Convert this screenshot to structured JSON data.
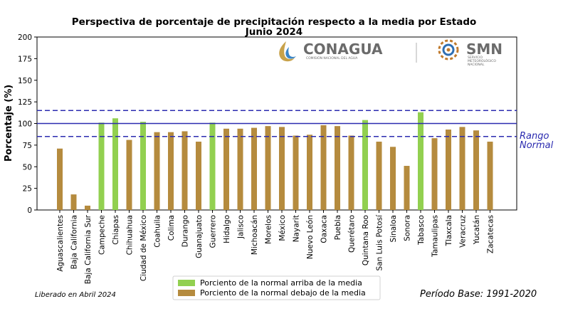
{
  "chart_data": {
    "type": "bar",
    "title": "Perspectiva de porcentaje de precipitación respecto a la media por Estado",
    "subtitle": "Junio 2024",
    "ylabel": "Porcentaje (%)",
    "xlabel": "",
    "ylim": [
      0,
      200
    ],
    "yticks": [
      0,
      25,
      50,
      75,
      100,
      125,
      150,
      175,
      200
    ],
    "grid": false,
    "categories": [
      "Aguascalientes",
      "Baja California",
      "Baja California Sur",
      "Campeche",
      "Chiapas",
      "Chihuahua",
      "Ciudad de México",
      "Coahuila",
      "Colima",
      "Durango",
      "Guanajuato",
      "Guerrero",
      "Hidalgo",
      "Jalisco",
      "Michoacán",
      "Morelos",
      "México",
      "Nayarit",
      "Nuevo León",
      "Oaxaca",
      "Puebla",
      "Querétaro",
      "Quintana Roo",
      "San Luis Potosí",
      "Sinaloa",
      "Sonora",
      "Tabasco",
      "Tamaulipas",
      "Tlaxcala",
      "Veracruz",
      "Yucatán",
      "Zacatecas"
    ],
    "values": [
      71,
      18,
      5,
      101,
      106,
      81,
      102,
      90,
      90,
      91,
      79,
      101,
      94,
      94,
      95,
      97,
      96,
      86,
      87,
      98,
      97,
      86,
      104,
      79,
      73,
      51,
      113,
      83,
      93,
      96,
      92,
      79
    ],
    "above_normal": [
      false,
      false,
      false,
      true,
      true,
      false,
      true,
      false,
      false,
      false,
      false,
      true,
      false,
      false,
      false,
      false,
      false,
      false,
      false,
      false,
      false,
      false,
      true,
      false,
      false,
      false,
      true,
      false,
      false,
      false,
      false,
      false
    ],
    "reference_lines": {
      "mean": 100,
      "normal_low": 85,
      "normal_high": 115
    },
    "normal_range_label_line1": "Rango",
    "normal_range_label_line2": "Normal",
    "legend": {
      "position": "bottom-center",
      "entries": [
        {
          "label": "Porciento de la normal arriba de la media",
          "color": "#92d050"
        },
        {
          "label": "Porciento de la normal debajo de la media",
          "color": "#b58b3e"
        }
      ]
    },
    "colors": {
      "above": "#92d050",
      "below": "#b58b3e",
      "mean_line": "#2b2bb0",
      "range_line": "#2b2bb0"
    }
  },
  "footer": {
    "released": "Liberado en Abril 2024",
    "base_period": "Período Base: 1991-2020"
  },
  "logos": {
    "conagua_name": "CONAGUA",
    "conagua_sub": "COMISIÓN NACIONAL DEL AGUA",
    "smn_name": "SMN",
    "smn_sub1": "SERVICIO",
    "smn_sub2": "METEOROLÓGICO",
    "smn_sub3": "NACIONAL"
  }
}
